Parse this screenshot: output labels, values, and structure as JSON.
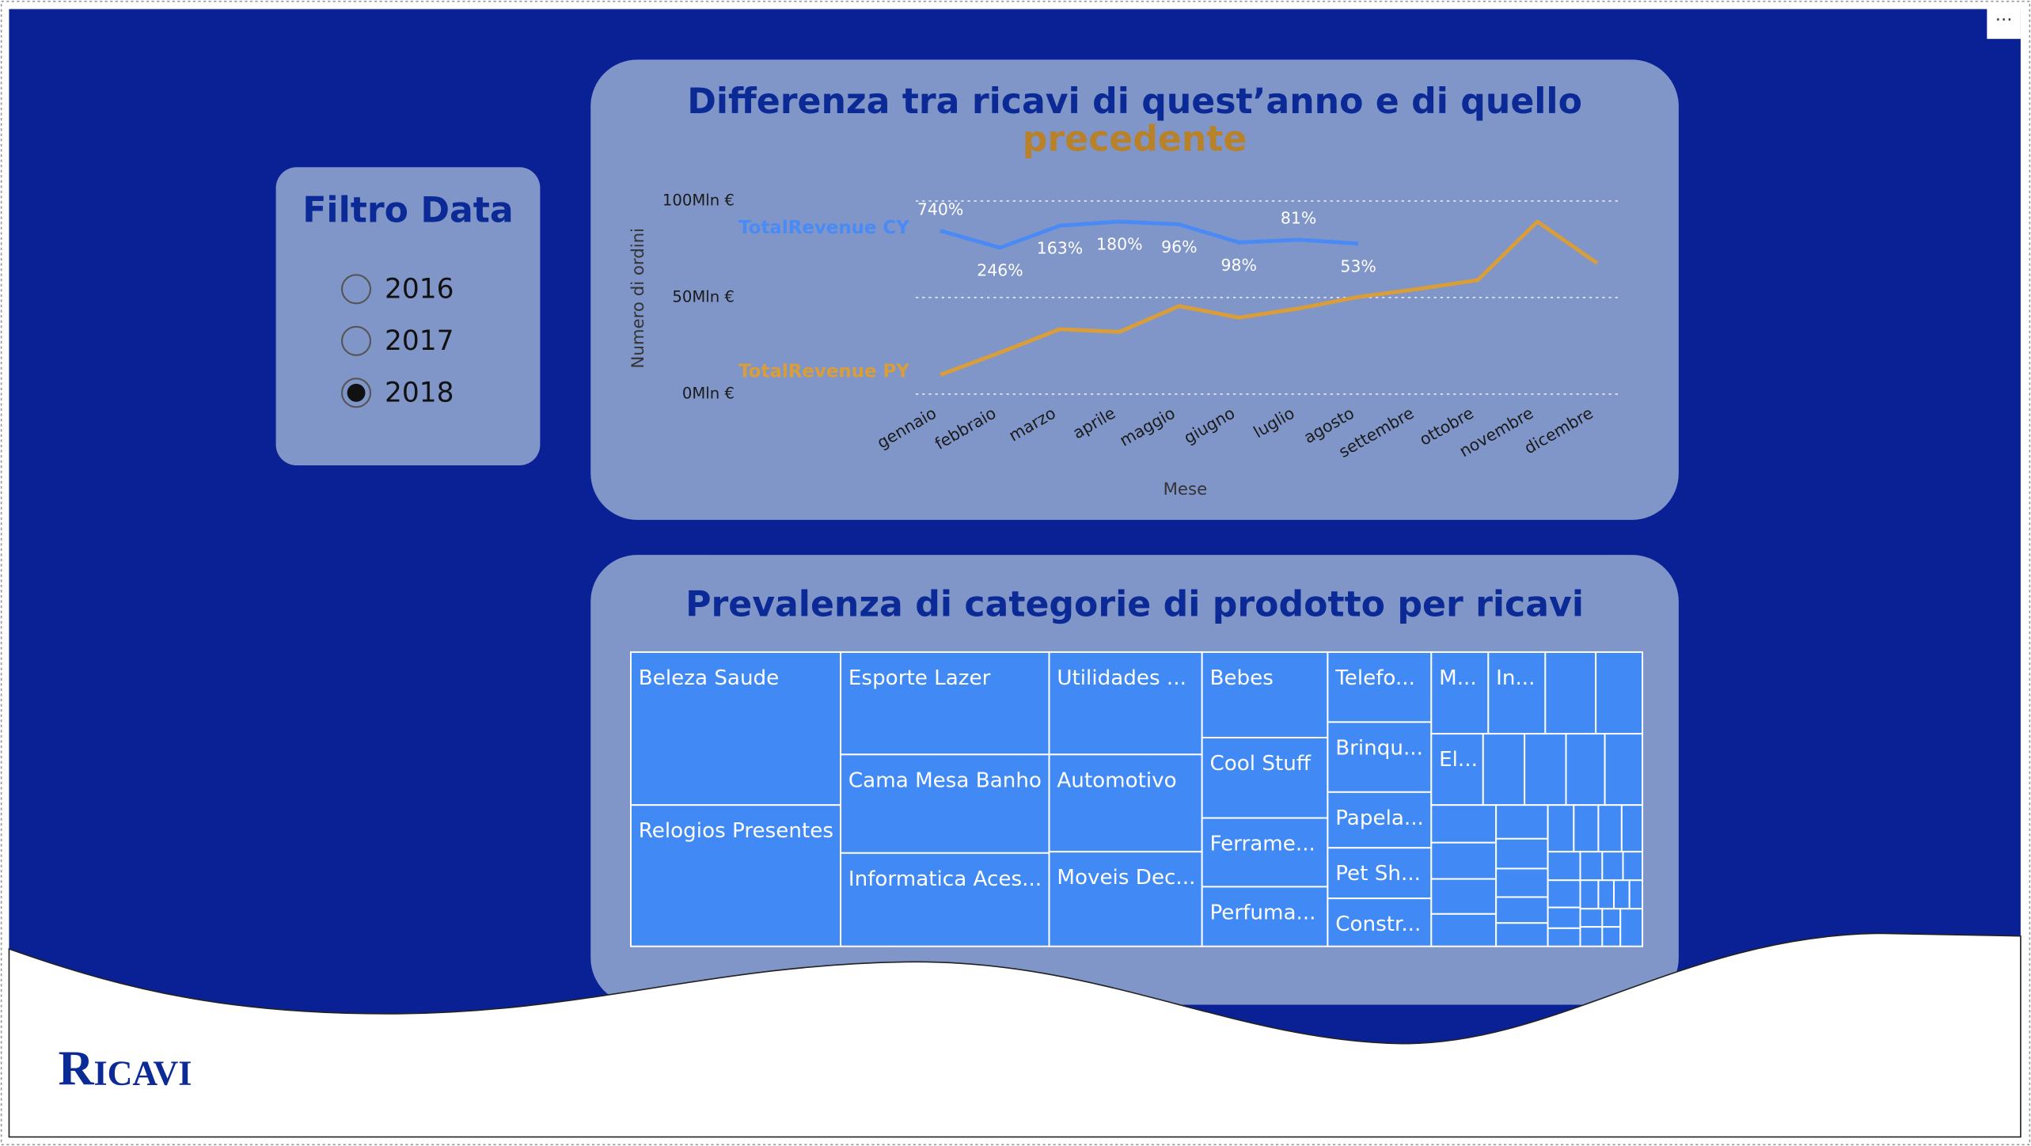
{
  "page_title": "Ricavi",
  "filter": {
    "title": "Filtro Data",
    "options": [
      "2016",
      "2017",
      "2018"
    ],
    "selected": 2
  },
  "chart_data": [
    {
      "type": "line",
      "title": [
        "Differenza tra ricavi di quest’anno e di quello",
        "precedente"
      ],
      "x_label": "Mese",
      "y_label": "Numero di ordini",
      "categories": [
        "gennaio",
        "febbraio",
        "marzo",
        "aprile",
        "maggio",
        "giugno",
        "luglio",
        "agosto",
        "settembre",
        "ottobre",
        "novembre",
        "dicembre"
      ],
      "series": [
        {
          "name": "TotalRevenue CY",
          "color": "#4a8af4",
          "values": [
            84.6,
            75.8,
            87.2,
            89.3,
            87.9,
            78.5,
            79.9,
            77.9,
            null,
            null,
            null,
            null
          ],
          "data_labels": [
            "740%",
            "246%",
            "163%",
            "180%",
            "96%",
            "98%",
            "81%",
            "53%"
          ]
        },
        {
          "name": "TotalRevenue PY",
          "color": "#d99e3a",
          "values": [
            10,
            21.5,
            33.6,
            32.2,
            45.6,
            39.6,
            44.3,
            50.3,
            54.4,
            59,
            89.3,
            67.8
          ]
        }
      ],
      "ylim": [
        0,
        100
      ],
      "yticks": [
        {
          "value": 0,
          "label": "0Mln €"
        },
        {
          "value": 50,
          "label": "50Mln €"
        },
        {
          "value": 100,
          "label": "100Mln €"
        }
      ],
      "grid": true
    },
    {
      "type": "treemap",
      "title": "Prevalenza di categorie di prodotto per ricavi",
      "color": "#418af5",
      "categories": [
        "Beleza Saude",
        "Relogios Presentes",
        "Esporte Lazer",
        "Cama Mesa Banho",
        "Informatica Aces...",
        "Utilidades ...",
        "Automotivo",
        "Moveis Dec...",
        "Bebes",
        "Cool Stuff",
        "Ferrame...",
        "Perfuma...",
        "Telefo...",
        "Brinqu...",
        "Papela...",
        "Pet Sh...",
        "Constr...",
        "M...",
        "In...",
        null,
        null,
        "El...",
        null,
        null,
        null,
        null,
        null,
        null,
        null,
        null,
        null,
        null,
        null,
        null,
        null,
        null,
        null,
        null,
        null,
        null,
        null,
        null,
        null,
        null,
        null,
        null,
        null,
        null,
        null,
        null,
        null,
        null,
        null,
        null,
        null
      ],
      "values": [
        191.2,
        176.6,
        127.2,
        122.4,
        115.9,
        93.2,
        88.5,
        86.1,
        64.0,
        60.1,
        51.4,
        44.6,
        43.2,
        43.2,
        34.4,
        31.2,
        29.6,
        27.7,
        27.7,
        24.6,
        22.7,
        22.0,
        17.6,
        17.6,
        16.5,
        16.0,
        14.5,
        14.0,
        13.5,
        12.5,
        10.4,
        9.2,
        8.8,
        8.0,
        7.2,
        7.2,
        6.8,
        6.5,
        5.8,
        5.5,
        3.7,
        3.5,
        3.3,
        5.3,
        4.0,
        3.5,
        3.1,
        2.6,
        2.6,
        2.2,
        2.4,
        2.6,
        2.0,
        2.1,
        4.9
      ]
    }
  ]
}
